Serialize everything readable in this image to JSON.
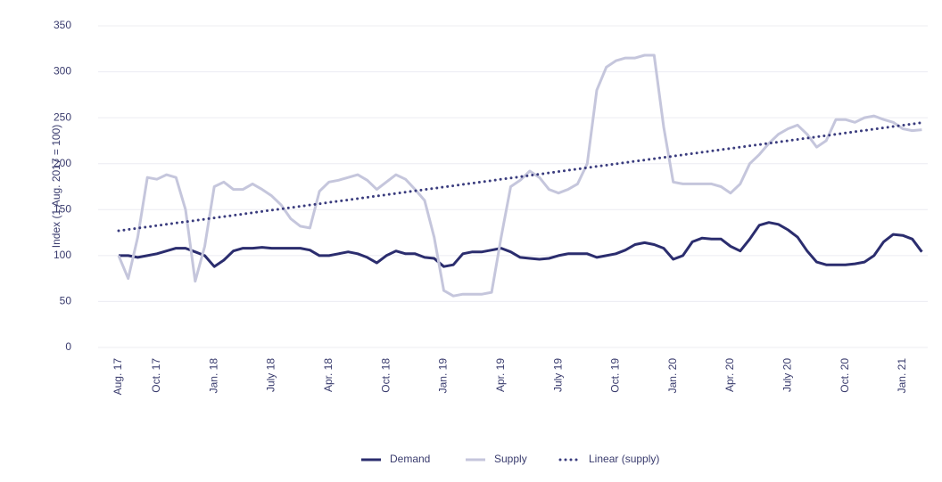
{
  "chart_data": {
    "type": "line",
    "y_label": "Index (1 Aug. 2017 = 100)",
    "categories": [
      "Aug. 17",
      null,
      null,
      null,
      "Oct. 17",
      null,
      null,
      null,
      null,
      null,
      "Jan. 18",
      null,
      null,
      null,
      null,
      null,
      "July 18",
      null,
      null,
      null,
      null,
      null,
      "Apr. 18",
      null,
      null,
      null,
      null,
      null,
      "Oct. 18",
      null,
      null,
      null,
      null,
      null,
      "Jan. 19",
      null,
      null,
      null,
      null,
      null,
      "Apr. 19",
      null,
      null,
      null,
      null,
      null,
      "July 19",
      null,
      null,
      null,
      null,
      null,
      "Oct. 19",
      null,
      null,
      null,
      null,
      null,
      "Jan. 20",
      null,
      null,
      null,
      null,
      null,
      "Apr. 20",
      null,
      null,
      null,
      null,
      null,
      "July 20",
      null,
      null,
      null,
      null,
      null,
      "Oct. 20",
      null,
      null,
      null,
      null,
      null,
      "Jan. 21",
      null,
      null
    ],
    "series": [
      {
        "name": "Demand",
        "color": "#2b2d6e",
        "width": 3,
        "values": [
          100,
          100,
          98,
          100,
          102,
          105,
          108,
          108,
          104,
          100,
          88,
          95,
          105,
          108,
          108,
          109,
          108,
          108,
          108,
          108,
          106,
          100,
          100,
          102,
          104,
          102,
          98,
          92,
          100,
          105,
          102,
          102,
          98,
          97,
          88,
          90,
          102,
          104,
          104,
          106,
          108,
          104,
          98,
          97,
          96,
          97,
          100,
          102,
          102,
          102,
          98,
          100,
          102,
          106,
          112,
          114,
          112,
          108,
          96,
          100,
          115,
          119,
          118,
          118,
          110,
          105,
          118,
          133,
          136,
          134,
          128,
          120,
          105,
          93,
          90,
          90,
          90,
          91,
          93,
          100,
          115,
          123,
          122,
          118,
          104
        ]
      },
      {
        "name": "Supply",
        "color": "#c5c6dc",
        "width": 3,
        "values": [
          100,
          75,
          120,
          185,
          183,
          188,
          185,
          150,
          72,
          110,
          175,
          180,
          172,
          172,
          178,
          172,
          165,
          155,
          140,
          132,
          130,
          170,
          180,
          182,
          185,
          188,
          182,
          172,
          180,
          188,
          183,
          172,
          160,
          120,
          62,
          56,
          58,
          58,
          58,
          60,
          120,
          175,
          182,
          192,
          185,
          172,
          168,
          172,
          178,
          200,
          280,
          305,
          312,
          315,
          315,
          318,
          318,
          240,
          180,
          178,
          178,
          178,
          178,
          175,
          168,
          178,
          200,
          210,
          222,
          232,
          238,
          242,
          232,
          218,
          225,
          248,
          248,
          245,
          250,
          252,
          248,
          245,
          238,
          236,
          237
        ]
      },
      {
        "name": "Linear (supply)",
        "color": "#3a3c7e",
        "width": 3,
        "style": "dotted",
        "values": [
          127.0,
          128.4,
          129.8,
          131.2,
          132.6,
          134.0,
          135.4,
          136.8,
          138.2,
          139.6,
          141.0,
          142.4,
          143.8,
          145.2,
          146.6,
          148.0,
          149.4,
          150.8,
          152.2,
          153.6,
          155.0,
          156.4,
          157.8,
          159.2,
          160.6,
          162.0,
          163.4,
          164.8,
          166.2,
          167.6,
          169.0,
          170.4,
          171.8,
          173.2,
          174.6,
          176.0,
          177.4,
          178.8,
          180.2,
          181.6,
          183.0,
          184.4,
          185.8,
          187.2,
          188.6,
          190.0,
          191.4,
          192.8,
          194.2,
          195.6,
          197.0,
          198.4,
          199.8,
          201.2,
          202.6,
          204.0,
          205.4,
          206.8,
          208.2,
          209.6,
          211.0,
          212.4,
          213.8,
          215.2,
          216.6,
          218.0,
          219.4,
          220.8,
          222.2,
          223.6,
          225.0,
          226.4,
          227.8,
          229.2,
          230.6,
          232.0,
          233.4,
          234.8,
          236.2,
          237.6,
          239.0,
          240.4,
          241.8,
          243.2,
          244.6
        ]
      }
    ],
    "ylim": [
      0,
      350
    ],
    "yticks": [
      0,
      50,
      100,
      150,
      200,
      250,
      300,
      350
    ],
    "grid": true,
    "legend": "bottom"
  }
}
